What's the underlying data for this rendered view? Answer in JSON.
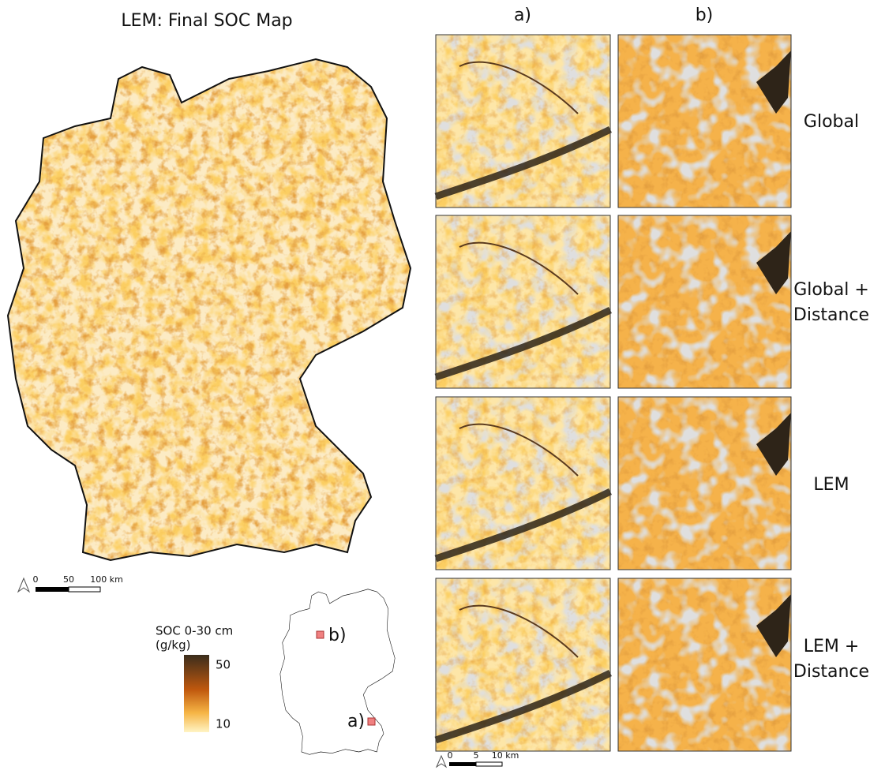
{
  "main_map": {
    "title": "LEM: Final SOC Map",
    "scale_bar": [
      "0",
      "50",
      "100 km"
    ]
  },
  "legend": {
    "title_lines": [
      "SOC 0-30 cm",
      "(g/kg)"
    ],
    "max": 50,
    "min": 10
  },
  "locator": {
    "labels": [
      "b)",
      "a)"
    ]
  },
  "panels": {
    "columns": [
      "a)",
      "b)"
    ],
    "rows": [
      [
        "Global"
      ],
      [
        "Global +",
        "Distance"
      ],
      [
        "LEM"
      ],
      [
        "LEM +",
        "Distance"
      ]
    ],
    "scale_bar": [
      "0",
      "5",
      "10 km"
    ]
  }
}
